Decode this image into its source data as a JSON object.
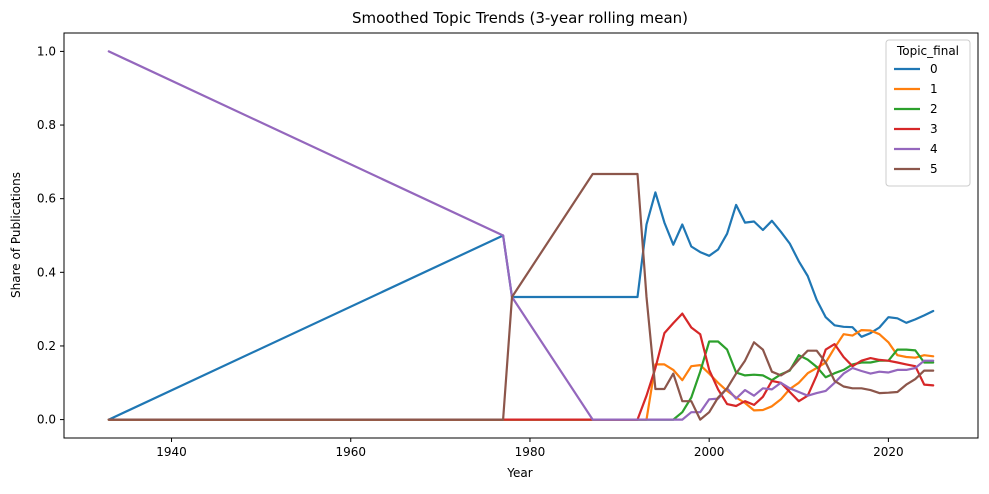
{
  "chart_data": {
    "type": "line",
    "title": "Smoothed Topic Trends (3-year rolling mean)",
    "xlabel": "Year",
    "ylabel": "Share of Publications",
    "xlim": [
      1928,
      2030
    ],
    "ylim": [
      -0.05,
      1.05
    ],
    "xticks": [
      1940,
      1960,
      1980,
      2000,
      2020
    ],
    "yticks": [
      0.0,
      0.2,
      0.4,
      0.6,
      0.8,
      1.0
    ],
    "ytick_labels": [
      "0.0",
      "0.2",
      "0.4",
      "0.6",
      "0.8",
      "1.0"
    ],
    "grid": false,
    "legend": {
      "title": "Topic_final",
      "placement": "top-right"
    },
    "series": [
      {
        "name": "0",
        "color": "#1f77b4",
        "x": [
          1933,
          1977,
          1978,
          1992,
          1993,
          1994,
          1995,
          1996,
          1997,
          1998,
          1999,
          2000,
          2001,
          2002,
          2003,
          2004,
          2005,
          2006,
          2007,
          2008,
          2009,
          2010,
          2011,
          2012,
          2013,
          2014,
          2015,
          2016,
          2017,
          2018,
          2019,
          2020,
          2021,
          2022,
          2023,
          2024,
          2025
        ],
        "y": [
          0.0,
          0.5,
          0.333,
          0.333,
          0.53,
          0.617,
          0.535,
          0.475,
          0.53,
          0.47,
          0.455,
          0.445,
          0.462,
          0.505,
          0.583,
          0.535,
          0.538,
          0.515,
          0.54,
          0.51,
          0.478,
          0.43,
          0.39,
          0.325,
          0.278,
          0.256,
          0.252,
          0.251,
          0.225,
          0.235,
          0.25,
          0.278,
          0.275,
          0.263,
          0.272,
          0.283,
          0.295
        ]
      },
      {
        "name": "1",
        "color": "#ff7f0e",
        "x": [
          1933,
          1993,
          1994,
          1995,
          1996,
          1997,
          1998,
          1999,
          2000,
          2001,
          2002,
          2003,
          2004,
          2005,
          2006,
          2007,
          2008,
          2009,
          2010,
          2011,
          2012,
          2013,
          2014,
          2015,
          2016,
          2017,
          2018,
          2019,
          2020,
          2021,
          2022,
          2023,
          2024,
          2025
        ],
        "y": [
          0.0,
          0.0,
          0.15,
          0.15,
          0.135,
          0.107,
          0.145,
          0.148,
          0.125,
          0.1,
          0.078,
          0.06,
          0.045,
          0.025,
          0.026,
          0.036,
          0.055,
          0.083,
          0.1,
          0.126,
          0.14,
          0.155,
          0.195,
          0.232,
          0.228,
          0.243,
          0.242,
          0.232,
          0.21,
          0.175,
          0.17,
          0.168,
          0.175,
          0.172
        ]
      },
      {
        "name": "2",
        "color": "#2ca02c",
        "x": [
          1933,
          1996,
          1997,
          1998,
          1999,
          2000,
          2001,
          2002,
          2003,
          2004,
          2005,
          2006,
          2007,
          2008,
          2009,
          2010,
          2011,
          2012,
          2013,
          2014,
          2015,
          2016,
          2017,
          2018,
          2019,
          2020,
          2021,
          2022,
          2023,
          2024,
          2025
        ],
        "y": [
          0.0,
          0.0,
          0.02,
          0.06,
          0.13,
          0.212,
          0.212,
          0.19,
          0.128,
          0.12,
          0.122,
          0.12,
          0.107,
          0.123,
          0.133,
          0.175,
          0.163,
          0.143,
          0.115,
          0.126,
          0.135,
          0.15,
          0.155,
          0.155,
          0.16,
          0.16,
          0.19,
          0.19,
          0.188,
          0.155,
          0.155
        ]
      },
      {
        "name": "3",
        "color": "#d62728",
        "x": [
          1933,
          1992,
          1993,
          1994,
          1995,
          1996,
          1997,
          1998,
          1999,
          2000,
          2001,
          2002,
          2003,
          2004,
          2005,
          2006,
          2007,
          2008,
          2009,
          2010,
          2011,
          2012,
          2013,
          2014,
          2015,
          2016,
          2017,
          2018,
          2019,
          2020,
          2021,
          2022,
          2023,
          2024,
          2025
        ],
        "y": [
          0.0,
          0.0,
          0.065,
          0.14,
          0.235,
          0.262,
          0.288,
          0.25,
          0.232,
          0.135,
          0.082,
          0.042,
          0.037,
          0.05,
          0.04,
          0.062,
          0.105,
          0.1,
          0.075,
          0.05,
          0.065,
          0.12,
          0.19,
          0.205,
          0.17,
          0.145,
          0.16,
          0.167,
          0.162,
          0.16,
          0.155,
          0.15,
          0.145,
          0.095,
          0.093
        ]
      },
      {
        "name": "4",
        "color": "#9467bd",
        "x": [
          1933,
          1977,
          1978,
          1987,
          1997,
          1998,
          1999,
          2000,
          2001,
          2002,
          2003,
          2004,
          2005,
          2006,
          2007,
          2008,
          2009,
          2010,
          2011,
          2012,
          2013,
          2014,
          2015,
          2016,
          2017,
          2018,
          2019,
          2020,
          2021,
          2022,
          2023,
          2024,
          2025
        ],
        "y": [
          1.0,
          0.5,
          0.333,
          0.0,
          0.0,
          0.02,
          0.02,
          0.055,
          0.057,
          0.085,
          0.057,
          0.08,
          0.065,
          0.085,
          0.082,
          0.1,
          0.085,
          0.075,
          0.065,
          0.072,
          0.078,
          0.1,
          0.125,
          0.14,
          0.132,
          0.125,
          0.13,
          0.128,
          0.135,
          0.135,
          0.14,
          0.16,
          0.16
        ]
      },
      {
        "name": "5",
        "color": "#8c564b",
        "x": [
          1933,
          1977,
          1978,
          1987,
          1992,
          1993,
          1994,
          1995,
          1996,
          1997,
          1998,
          1999,
          2000,
          2001,
          2002,
          2003,
          2004,
          2005,
          2006,
          2007,
          2008,
          2009,
          2010,
          2011,
          2012,
          2013,
          2014,
          2015,
          2016,
          2017,
          2018,
          2019,
          2020,
          2021,
          2022,
          2023,
          2024,
          2025
        ],
        "y": [
          0.0,
          0.0,
          0.333,
          0.667,
          0.667,
          0.333,
          0.083,
          0.083,
          0.125,
          0.05,
          0.05,
          0.0,
          0.02,
          0.06,
          0.085,
          0.125,
          0.16,
          0.21,
          0.19,
          0.13,
          0.12,
          0.135,
          0.163,
          0.187,
          0.187,
          0.155,
          0.105,
          0.09,
          0.085,
          0.085,
          0.08,
          0.072,
          0.073,
          0.075,
          0.095,
          0.11,
          0.133,
          0.133
        ]
      }
    ]
  }
}
